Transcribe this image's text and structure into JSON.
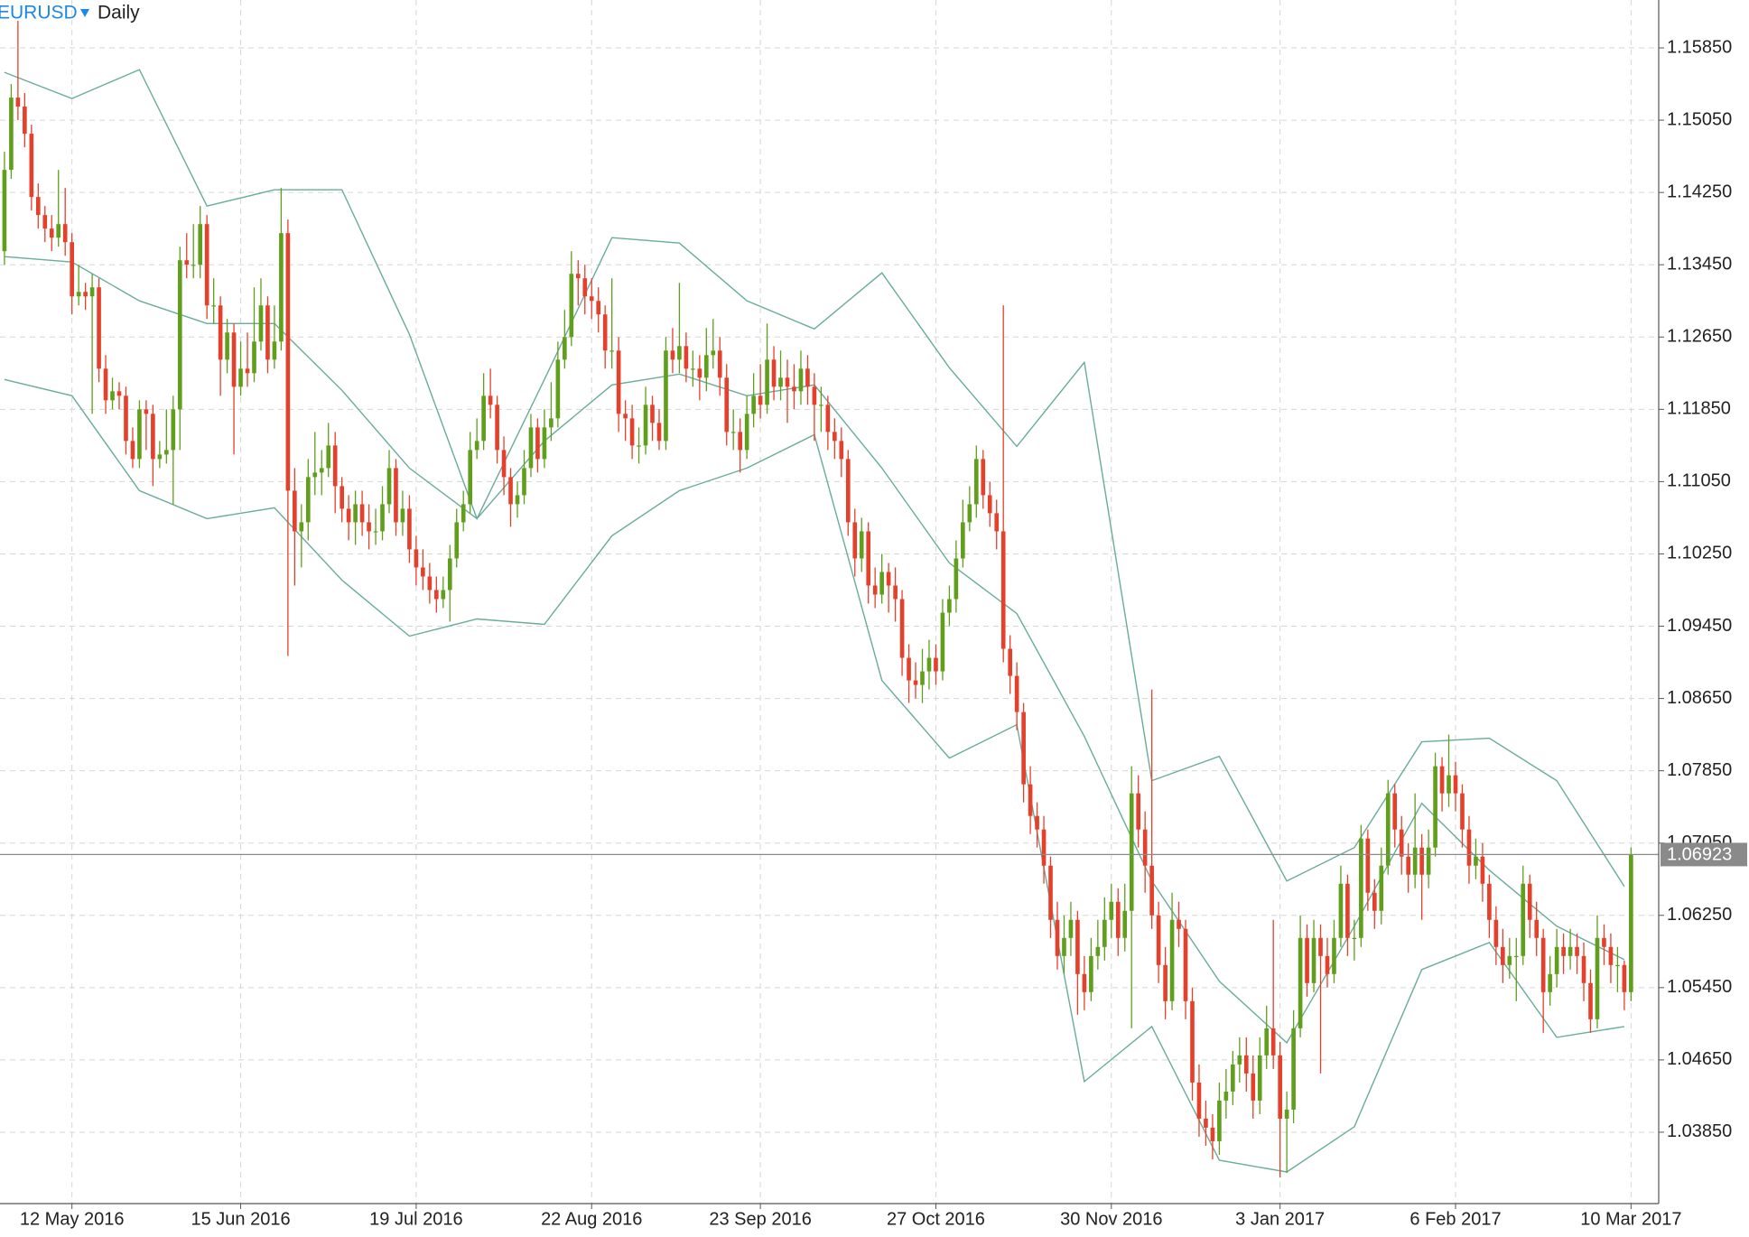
{
  "chart_data": {
    "type": "candlestick",
    "symbol": "EURUSD",
    "timeframe": "Daily",
    "up_color": "#5f9f1c",
    "down_color": "#e5402b",
    "open": [
      1.136,
      1.145,
      1.153,
      1.152,
      1.149,
      1.142,
      1.14,
      1.1385,
      1.1375,
      1.139,
      1.137,
      1.131,
      1.1315,
      1.131,
      1.132,
      1.123,
      1.1195,
      1.1205,
      1.12,
      1.115,
      1.113,
      1.1185,
      1.118,
      1.113,
      1.1135,
      1.114,
      1.1185,
      1.135,
      1.1345,
      1.1345,
      1.139,
      1.13,
      1.13,
      1.124,
      1.127,
      1.121,
      1.123,
      1.1225,
      1.126,
      1.13,
      1.124,
      1.126,
      1.138,
      1.1095,
      1.105,
      1.106,
      1.111,
      1.1115,
      1.112,
      1.1145,
      1.11,
      1.1075,
      1.106,
      1.108,
      1.106,
      1.105,
      1.105,
      1.108,
      1.112,
      1.106,
      1.1075,
      1.103,
      1.101,
      1.1,
      1.0985,
      1.0975,
      1.0985,
      1.102,
      1.106,
      1.108,
      1.114,
      1.115,
      1.12,
      1.119,
      1.114,
      1.111,
      1.108,
      1.109,
      1.112,
      1.1165,
      1.113,
      1.1165,
      1.1175,
      1.124,
      1.1265,
      1.1335,
      1.133,
      1.131,
      1.1305,
      1.129,
      1.125,
      1.125,
      1.118,
      1.1175,
      1.1145,
      1.1145,
      1.119,
      1.117,
      1.115,
      1.125,
      1.124,
      1.1255,
      1.123,
      1.123,
      1.122,
      1.1245,
      1.125,
      1.122,
      1.116,
      1.116,
      1.114,
      1.118,
      1.12,
      1.119,
      1.124,
      1.121,
      1.122,
      1.121,
      1.1205,
      1.123,
      1.121,
      1.119,
      1.119,
      1.116,
      1.115,
      1.113,
      1.106,
      1.102,
      1.105,
      1.099,
      1.098,
      1.1005,
      1.099,
      1.0975,
      1.091,
      1.0885,
      1.088,
      1.0895,
      1.091,
      1.0895,
      1.096,
      1.0975,
      1.102,
      1.106,
      1.108,
      1.113,
      1.109,
      1.107,
      1.105,
      1.092,
      1.089,
      1.085,
      1.077,
      1.0735,
      1.072,
      1.068,
      1.062,
      1.058,
      1.06,
      1.062,
      1.056,
      1.054,
      1.058,
      1.059,
      1.062,
      1.064,
      1.06,
      1.063,
      1.076,
      1.072,
      1.068,
      1.0625,
      1.057,
      1.053,
      1.062,
      1.061,
      1.053,
      1.044,
      1.04,
      1.039,
      1.0375,
      1.042,
      1.043,
      1.046,
      1.047,
      1.045,
      1.042,
      1.047,
      1.05,
      1.047,
      1.04,
      1.041,
      1.05,
      1.06,
      1.055,
      1.06,
      1.058,
      1.056,
      1.06,
      1.066,
      1.06,
      1.06,
      1.071,
      1.065,
      1.063,
      1.068,
      1.076,
      1.072,
      1.069,
      1.067,
      1.07,
      1.067,
      1.07,
      1.079,
      1.076,
      1.078,
      1.076,
      1.072,
      1.068,
      1.069,
      1.066,
      1.062,
      1.059,
      1.057,
      1.058,
      1.058,
      1.066,
      1.062,
      1.06,
      1.054,
      1.056,
      1.059,
      1.058,
      1.059,
      1.058,
      1.055,
      1.051,
      1.06,
      1.059,
      1.057,
      1.057,
      1.054
    ],
    "high": [
      1.147,
      1.1545,
      1.1615,
      1.1535,
      1.15,
      1.1435,
      1.141,
      1.14,
      1.145,
      1.143,
      1.138,
      1.1345,
      1.1325,
      1.1335,
      1.133,
      1.1245,
      1.122,
      1.1215,
      1.121,
      1.1165,
      1.1195,
      1.1195,
      1.119,
      1.115,
      1.1185,
      1.12,
      1.1365,
      1.138,
      1.139,
      1.141,
      1.14,
      1.133,
      1.131,
      1.1285,
      1.128,
      1.126,
      1.127,
      1.132,
      1.133,
      1.131,
      1.13,
      1.143,
      1.1395,
      1.112,
      1.108,
      1.113,
      1.116,
      1.114,
      1.117,
      1.116,
      1.111,
      1.109,
      1.1095,
      1.1095,
      1.108,
      1.1075,
      1.11,
      1.114,
      1.113,
      1.1095,
      1.109,
      1.1045,
      1.103,
      1.1015,
      1.1,
      1.1,
      1.1035,
      1.1075,
      1.1095,
      1.116,
      1.1175,
      1.1225,
      1.123,
      1.12,
      1.1155,
      1.112,
      1.1105,
      1.114,
      1.118,
      1.1175,
      1.1185,
      1.1215,
      1.126,
      1.1295,
      1.136,
      1.135,
      1.1345,
      1.133,
      1.132,
      1.13,
      1.133,
      1.1265,
      1.1195,
      1.119,
      1.1165,
      1.121,
      1.12,
      1.1185,
      1.1265,
      1.1275,
      1.1325,
      1.127,
      1.125,
      1.1245,
      1.1275,
      1.1285,
      1.1265,
      1.1235,
      1.1185,
      1.1175,
      1.12,
      1.1225,
      1.1235,
      1.128,
      1.1255,
      1.125,
      1.124,
      1.1235,
      1.125,
      1.1245,
      1.1225,
      1.121,
      1.12,
      1.1175,
      1.1165,
      1.114,
      1.1075,
      1.1065,
      1.106,
      1.101,
      1.1025,
      1.1015,
      1.101,
      1.0985,
      1.0925,
      1.0905,
      1.092,
      1.093,
      1.0925,
      1.0975,
      1.099,
      1.104,
      1.1085,
      1.11,
      1.1145,
      1.114,
      1.1105,
      1.1085,
      1.13,
      1.0935,
      1.0905,
      1.086,
      1.079,
      1.075,
      1.0735,
      1.069,
      1.064,
      1.0625,
      1.064,
      1.063,
      1.058,
      1.06,
      1.062,
      1.0645,
      1.066,
      1.0655,
      1.066,
      1.079,
      1.078,
      1.074,
      1.0875,
      1.064,
      1.059,
      1.065,
      1.064,
      1.062,
      1.0545,
      1.046,
      1.042,
      1.0405,
      1.044,
      1.0455,
      1.0475,
      1.049,
      1.049,
      1.047,
      1.049,
      1.0525,
      1.062,
      1.0485,
      1.043,
      1.052,
      1.0625,
      1.0615,
      1.062,
      1.0615,
      1.06,
      1.062,
      1.068,
      1.067,
      1.062,
      1.0725,
      1.072,
      1.0665,
      1.07,
      1.0775,
      1.077,
      1.0735,
      1.0705,
      1.076,
      1.0715,
      1.072,
      1.0805,
      1.08,
      1.0825,
      1.0795,
      1.077,
      1.0735,
      1.071,
      1.0705,
      1.067,
      1.0635,
      1.061,
      1.06,
      1.06,
      1.068,
      1.067,
      1.064,
      1.061,
      1.058,
      1.061,
      1.0605,
      1.061,
      1.0605,
      1.0595,
      1.0565,
      1.0625,
      1.0615,
      1.0605,
      1.059,
      1.0575,
      1.07
    ],
    "low": [
      1.1345,
      1.144,
      1.1505,
      1.1475,
      1.1405,
      1.1385,
      1.137,
      1.136,
      1.1365,
      1.1355,
      1.129,
      1.13,
      1.1295,
      1.118,
      1.1215,
      1.118,
      1.1185,
      1.1185,
      1.1135,
      1.112,
      1.112,
      1.114,
      1.11,
      1.112,
      1.1125,
      1.108,
      1.114,
      1.133,
      1.133,
      1.133,
      1.1285,
      1.128,
      1.12,
      1.1225,
      1.1135,
      1.12,
      1.121,
      1.1215,
      1.125,
      1.1225,
      1.123,
      1.125,
      1.0912,
      1.099,
      1.101,
      1.104,
      1.109,
      1.109,
      1.111,
      1.107,
      1.106,
      1.104,
      1.1035,
      1.1045,
      1.103,
      1.1035,
      1.104,
      1.107,
      1.1045,
      1.1045,
      1.1015,
      1.099,
      1.0985,
      1.097,
      1.096,
      1.0965,
      1.095,
      1.101,
      1.105,
      1.107,
      1.113,
      1.114,
      1.1175,
      1.1125,
      1.109,
      1.1055,
      1.1065,
      1.108,
      1.111,
      1.1115,
      1.112,
      1.115,
      1.1165,
      1.123,
      1.1255,
      1.13,
      1.129,
      1.1285,
      1.127,
      1.123,
      1.123,
      1.116,
      1.115,
      1.113,
      1.1125,
      1.1135,
      1.115,
      1.114,
      1.114,
      1.1225,
      1.1225,
      1.1215,
      1.121,
      1.1195,
      1.1205,
      1.123,
      1.12,
      1.1145,
      1.114,
      1.1115,
      1.113,
      1.1165,
      1.1175,
      1.118,
      1.1195,
      1.1195,
      1.117,
      1.1185,
      1.119,
      1.119,
      1.115,
      1.116,
      1.114,
      1.113,
      1.111,
      1.1045,
      1.1,
      1.1005,
      1.097,
      1.0965,
      1.097,
      1.096,
      1.095,
      1.089,
      1.086,
      1.0865,
      1.086,
      1.0875,
      1.088,
      1.0885,
      1.0945,
      1.096,
      1.101,
      1.105,
      1.1065,
      1.1075,
      1.1055,
      1.103,
      1.0905,
      1.087,
      1.083,
      1.075,
      1.0715,
      1.07,
      1.066,
      1.06,
      1.0565,
      1.056,
      1.058,
      1.0515,
      1.052,
      1.053,
      1.0565,
      1.0575,
      1.06,
      1.058,
      1.0585,
      1.05,
      1.07,
      1.065,
      1.061,
      1.055,
      1.051,
      1.052,
      1.059,
      1.051,
      1.042,
      1.038,
      1.037,
      1.0355,
      1.036,
      1.04,
      1.0415,
      1.044,
      1.043,
      1.04,
      1.0405,
      1.0455,
      1.0455,
      1.0335,
      1.034,
      1.0395,
      1.049,
      1.0535,
      1.054,
      1.045,
      1.0545,
      1.055,
      1.059,
      1.058,
      1.0575,
      1.059,
      1.063,
      1.061,
      1.0615,
      1.067,
      1.07,
      1.067,
      1.065,
      1.0655,
      1.062,
      1.0655,
      1.069,
      1.074,
      1.0745,
      1.074,
      1.07,
      1.066,
      1.0665,
      1.064,
      1.06,
      1.057,
      1.055,
      1.0555,
      1.053,
      1.057,
      1.06,
      1.058,
      1.0495,
      1.0525,
      1.0545,
      1.056,
      1.0565,
      1.056,
      1.053,
      1.0495,
      1.05,
      1.057,
      1.055,
      1.054,
      1.052,
      1.053
    ],
    "close": [
      1.145,
      1.153,
      1.152,
      1.149,
      1.142,
      1.14,
      1.1385,
      1.1375,
      1.139,
      1.137,
      1.131,
      1.1315,
      1.131,
      1.132,
      1.123,
      1.1195,
      1.1205,
      1.12,
      1.115,
      1.113,
      1.1185,
      1.118,
      1.113,
      1.1135,
      1.114,
      1.1185,
      1.135,
      1.1345,
      1.1345,
      1.139,
      1.13,
      1.13,
      1.124,
      1.127,
      1.121,
      1.123,
      1.1225,
      1.126,
      1.13,
      1.124,
      1.126,
      1.138,
      1.1095,
      1.105,
      1.106,
      1.111,
      1.1115,
      1.112,
      1.1145,
      1.11,
      1.1075,
      1.106,
      1.108,
      1.106,
      1.105,
      1.105,
      1.108,
      1.112,
      1.106,
      1.1075,
      1.103,
      1.101,
      1.1,
      1.0985,
      1.0975,
      1.0985,
      1.102,
      1.106,
      1.108,
      1.114,
      1.115,
      1.12,
      1.119,
      1.114,
      1.111,
      1.108,
      1.109,
      1.112,
      1.1165,
      1.113,
      1.1165,
      1.1175,
      1.124,
      1.1265,
      1.1335,
      1.133,
      1.131,
      1.1305,
      1.129,
      1.125,
      1.125,
      1.118,
      1.1175,
      1.1145,
      1.1145,
      1.119,
      1.117,
      1.115,
      1.125,
      1.124,
      1.1255,
      1.123,
      1.123,
      1.122,
      1.1245,
      1.125,
      1.122,
      1.116,
      1.116,
      1.114,
      1.118,
      1.12,
      1.119,
      1.124,
      1.121,
      1.122,
      1.121,
      1.1205,
      1.123,
      1.121,
      1.119,
      1.119,
      1.116,
      1.115,
      1.113,
      1.106,
      1.102,
      1.105,
      1.099,
      1.098,
      1.1005,
      1.099,
      1.0975,
      1.091,
      1.0885,
      1.088,
      1.0895,
      1.091,
      1.0895,
      1.096,
      1.0975,
      1.102,
      1.106,
      1.108,
      1.113,
      1.109,
      1.107,
      1.105,
      1.092,
      1.089,
      1.085,
      1.077,
      1.0735,
      1.072,
      1.068,
      1.062,
      1.058,
      1.06,
      1.062,
      1.056,
      1.054,
      1.058,
      1.059,
      1.062,
      1.064,
      1.06,
      1.063,
      1.076,
      1.072,
      1.068,
      1.0625,
      1.057,
      1.053,
      1.062,
      1.061,
      1.053,
      1.044,
      1.04,
      1.039,
      1.0375,
      1.042,
      1.043,
      1.046,
      1.047,
      1.045,
      1.042,
      1.047,
      1.05,
      1.047,
      1.04,
      1.041,
      1.05,
      1.06,
      1.055,
      1.06,
      1.058,
      1.056,
      1.06,
      1.066,
      1.06,
      1.06,
      1.071,
      1.065,
      1.063,
      1.068,
      1.076,
      1.072,
      1.069,
      1.067,
      1.07,
      1.067,
      1.07,
      1.079,
      1.076,
      1.078,
      1.076,
      1.072,
      1.068,
      1.069,
      1.066,
      1.062,
      1.059,
      1.057,
      1.058,
      1.058,
      1.066,
      1.062,
      1.06,
      1.054,
      1.056,
      1.059,
      1.058,
      1.059,
      1.058,
      1.055,
      1.051,
      1.06,
      1.059,
      1.057,
      1.057,
      1.054,
      1.06923
    ],
    "bands": {
      "color": "#6aab9c",
      "x": [
        0,
        10,
        20,
        30,
        40,
        50,
        60,
        70,
        80,
        90,
        100,
        110,
        120,
        130,
        140,
        150,
        160,
        170,
        180,
        190,
        200,
        210,
        220,
        230,
        240
      ],
      "upper": [
        1.1558,
        1.1529,
        1.1561,
        1.141,
        1.1428,
        1.1428,
        1.1268,
        1.1064,
        1.1218,
        1.1375,
        1.1369,
        1.1305,
        1.1274,
        1.1336,
        1.1231,
        1.1144,
        1.1237,
        1.0774,
        1.0801,
        1.0663,
        1.07,
        1.0817,
        1.0821,
        1.0774,
        1.0657
      ],
      "middle": [
        1.1354,
        1.1348,
        1.1305,
        1.128,
        1.128,
        1.1206,
        1.112,
        1.1064,
        1.115,
        1.1212,
        1.1224,
        1.12,
        1.1212,
        1.112,
        1.1015,
        1.0959,
        1.0823,
        1.0663,
        1.0552,
        1.0484,
        1.0613,
        1.0749,
        1.0675,
        1.0613,
        1.0576
      ],
      "lower": [
        1.1218,
        1.12,
        1.1095,
        1.1064,
        1.1076,
        1.0996,
        1.0934,
        1.0953,
        1.0947,
        1.1045,
        1.1095,
        1.112,
        1.1157,
        1.0885,
        1.0799,
        1.0836,
        1.0441,
        1.0502,
        1.0354,
        1.0341,
        1.0391,
        1.0565,
        1.0595,
        1.049,
        1.0502
      ]
    },
    "last_price": 1.06923,
    "last_price_color": "#8a8a8a",
    "xlim": [
      -0.66,
      245.1
    ],
    "ylim": [
      1.0306,
      1.1638
    ],
    "xticks": [
      {
        "value": 10,
        "label": "12 May 2016"
      },
      {
        "value": 35,
        "label": "15 Jun 2016"
      },
      {
        "value": 61,
        "label": "19 Jul 2016"
      },
      {
        "value": 87,
        "label": "22 Aug 2016"
      },
      {
        "value": 112,
        "label": "23 Sep 2016"
      },
      {
        "value": 138,
        "label": "27 Oct 2016"
      },
      {
        "value": 164,
        "label": "30 Nov 2016"
      },
      {
        "value": 189,
        "label": "3 Jan 2017"
      },
      {
        "value": 215,
        "label": "6 Feb 2017"
      },
      {
        "value": 241,
        "label": "10 Mar 2017"
      }
    ],
    "yticks": [
      {
        "value": 1.0385,
        "label": "1.03850"
      },
      {
        "value": 1.0465,
        "label": "1.04650"
      },
      {
        "value": 1.0545,
        "label": "1.05450"
      },
      {
        "value": 1.0625,
        "label": "1.06250"
      },
      {
        "value": 1.0705,
        "label": "1.07050"
      },
      {
        "value": 1.0785,
        "label": "1.07850"
      },
      {
        "value": 1.0865,
        "label": "1.08650"
      },
      {
        "value": 1.0945,
        "label": "1.09450"
      },
      {
        "value": 1.1025,
        "label": "1.10250"
      },
      {
        "value": 1.1105,
        "label": "1.11050"
      },
      {
        "value": 1.1185,
        "label": "1.11850"
      },
      {
        "value": 1.1265,
        "label": "1.12650"
      },
      {
        "value": 1.1345,
        "label": "1.13450"
      },
      {
        "value": 1.1425,
        "label": "1.14250"
      },
      {
        "value": 1.1505,
        "label": "1.15050"
      },
      {
        "value": 1.1585,
        "label": "1.15850"
      }
    ],
    "grid": true
  }
}
